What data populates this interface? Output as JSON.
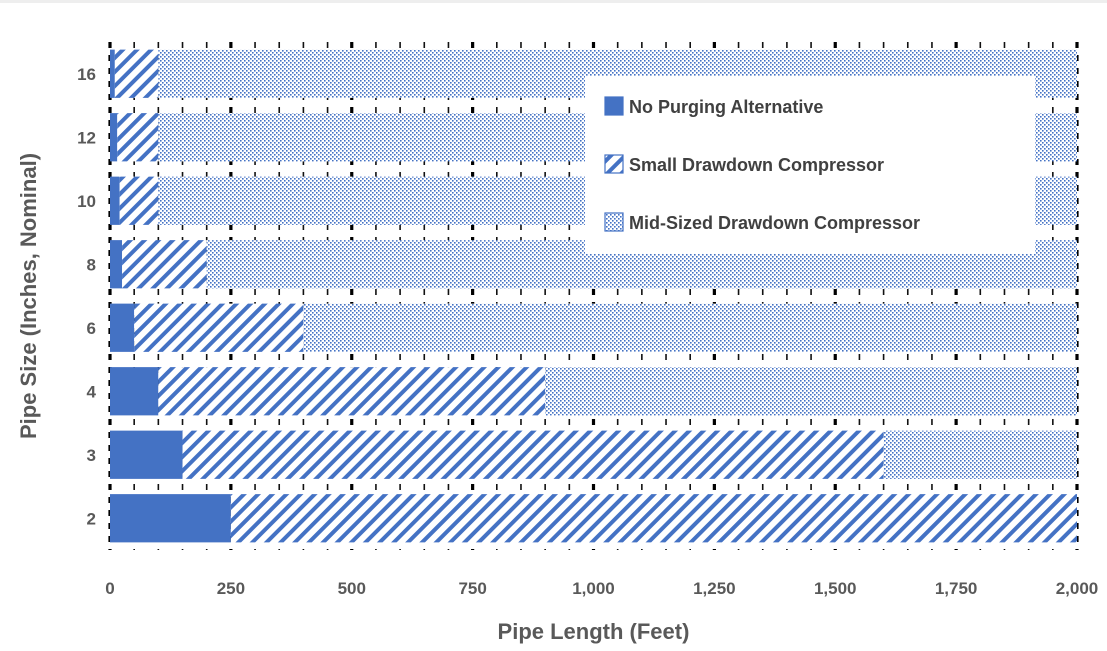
{
  "chart_data": {
    "type": "bar",
    "orientation": "horizontal",
    "stacked": true,
    "title": "",
    "xlabel": "Pipe Length (Feet)",
    "ylabel": "Pipe Size (Inches, Nominal)",
    "xlim": [
      0,
      2000
    ],
    "x_ticks": [
      "0",
      "250",
      "500",
      "750",
      "1,000",
      "1,250",
      "1,500",
      "1,750",
      "2,000"
    ],
    "categories": [
      "2",
      "3",
      "4",
      "6",
      "8",
      "10",
      "12",
      "16"
    ],
    "series": [
      {
        "name": "No Purging Alternative",
        "values": [
          250,
          150,
          100,
          50,
          25,
          20,
          15,
          10
        ]
      },
      {
        "name": "Small Drawdown Compressor",
        "values": [
          1750,
          1450,
          800,
          350,
          175,
          80,
          85,
          90
        ]
      },
      {
        "name": "Mid-Sized Drawdown Compressor",
        "values": [
          0,
          400,
          1100,
          1600,
          1800,
          1900,
          1900,
          1900
        ]
      }
    ],
    "legend_position": "top-right",
    "colors": {
      "primary": "#4472c4",
      "pattern_bg": "#ffffff",
      "dots": "#4472c4"
    }
  }
}
